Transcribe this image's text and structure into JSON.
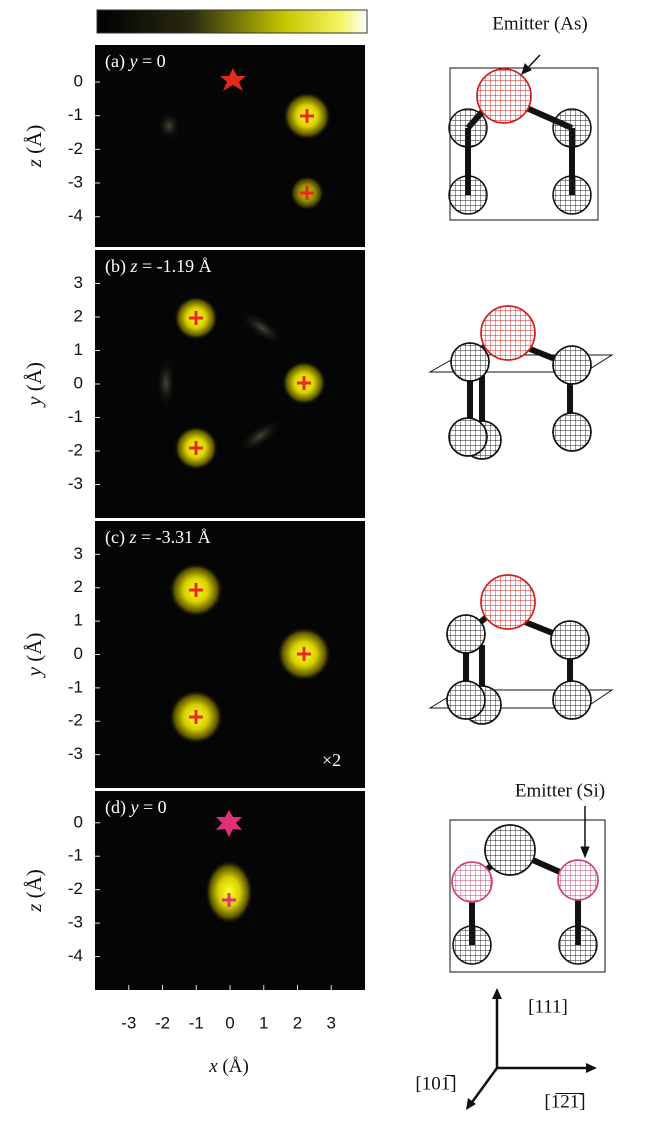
{
  "panels": [
    {
      "index": "(a)",
      "var": "y",
      "value": "= 0",
      "axis_var": "z",
      "axis_unit": "(Å)",
      "ylim": [
        -4.9,
        1.1
      ],
      "yticks": [
        0,
        -1,
        -2,
        -3,
        -4
      ]
    },
    {
      "index": "(b)",
      "var": "z",
      "value": "= -1.19 Å",
      "axis_var": "y",
      "axis_unit": "(Å)",
      "ylim": [
        -4,
        4
      ],
      "yticks": [
        3,
        2,
        1,
        0,
        -1,
        -2,
        -3
      ]
    },
    {
      "index": "(c)",
      "var": "z",
      "value": "= -3.31 Å",
      "axis_var": "y",
      "axis_unit": "(Å)",
      "ylim": [
        -4,
        4
      ],
      "yticks": [
        3,
        2,
        1,
        0,
        -1,
        -2,
        -3
      ],
      "note": "×2"
    },
    {
      "index": "(d)",
      "var": "y",
      "value": "= 0",
      "axis_var": "z",
      "axis_unit": "(Å)",
      "ylim": [
        -5,
        0.95
      ],
      "yticks": [
        0,
        -1,
        -2,
        -3,
        -4
      ]
    }
  ],
  "x_axis": {
    "var": "x",
    "unit": "(Å)",
    "xlim": [
      -4,
      4
    ],
    "xticks": [
      -3,
      -2,
      -1,
      0,
      1,
      2,
      3
    ]
  },
  "emitters": [
    "Emitter (As)",
    "Emitter (Si)"
  ],
  "directions": [
    "[111]",
    "[101̅]",
    "[1̅2̅1̅]"
  ]
}
